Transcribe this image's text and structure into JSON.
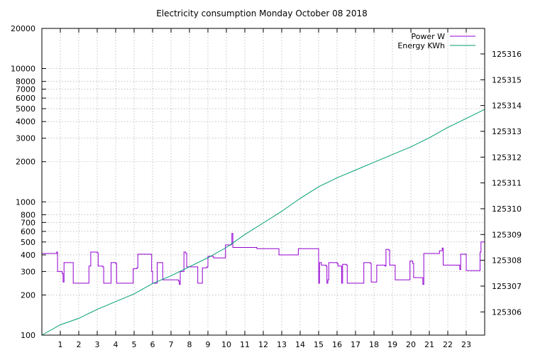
{
  "chart_data": {
    "type": "line",
    "title": "Electricity consumption Monday October 08 2018",
    "xlabel": "",
    "ylabel": "",
    "x_ticks": [
      "1",
      "2",
      "3",
      "4",
      "5",
      "6",
      "7",
      "8",
      "9",
      "10",
      "11",
      "12",
      "13",
      "14",
      "15",
      "16",
      "17",
      "18",
      "19",
      "20",
      "21",
      "22",
      "23"
    ],
    "xlim": [
      0,
      24
    ],
    "y_left": {
      "scale": "log",
      "range": [
        100,
        20000
      ],
      "ticks": [
        {
          "v": 100,
          "label": "100"
        },
        {
          "v": 200,
          "label": "200"
        },
        {
          "v": 300,
          "label": "300"
        },
        {
          "v": 400,
          "label": "400"
        },
        {
          "v": 500,
          "label": "500"
        },
        {
          "v": 600,
          "label": "600"
        },
        {
          "v": 700,
          "label": "700"
        },
        {
          "v": 800,
          "label": "800"
        },
        {
          "v": 1000,
          "label": "1000"
        },
        {
          "v": 2000,
          "label": "2000"
        },
        {
          "v": 3000,
          "label": "3000"
        },
        {
          "v": 4000,
          "label": "4000"
        },
        {
          "v": 5000,
          "label": "5000"
        },
        {
          "v": 6000,
          "label": "6000"
        },
        {
          "v": 7000,
          "label": "7000"
        },
        {
          "v": 8000,
          "label": "8000"
        },
        {
          "v": 10000,
          "label": "10000"
        },
        {
          "v": 20000,
          "label": "20000"
        }
      ]
    },
    "y_right": {
      "scale": "linear",
      "range": [
        125305.1,
        125316.99
      ],
      "ticks": [
        {
          "v": 125306,
          "label": "125306"
        },
        {
          "v": 125307,
          "label": "125307"
        },
        {
          "v": 125308,
          "label": "125308"
        },
        {
          "v": 125309,
          "label": "125309"
        },
        {
          "v": 125310,
          "label": "125310"
        },
        {
          "v": 125311,
          "label": "125311"
        },
        {
          "v": 125312,
          "label": "125312"
        },
        {
          "v": 125313,
          "label": "125313"
        },
        {
          "v": 125314,
          "label": "125314"
        },
        {
          "v": 125315,
          "label": "125315"
        },
        {
          "v": 125316,
          "label": "125316"
        }
      ]
    },
    "grid": true,
    "legend": "top-right",
    "series": [
      {
        "name": "Power W",
        "axis": "left",
        "color": "#9400d3",
        "step": true,
        "points": [
          [
            0,
            410
          ],
          [
            0.8,
            420
          ],
          [
            0.85,
            300
          ],
          [
            1.1,
            290
          ],
          [
            1.15,
            250
          ],
          [
            1.2,
            350
          ],
          [
            1.6,
            350
          ],
          [
            1.7,
            245
          ],
          [
            2.5,
            245
          ],
          [
            2.55,
            330
          ],
          [
            2.65,
            420
          ],
          [
            3.0,
            415
          ],
          [
            3.05,
            330
          ],
          [
            3.3,
            325
          ],
          [
            3.35,
            245
          ],
          [
            3.7,
            245
          ],
          [
            3.75,
            350
          ],
          [
            4.0,
            345
          ],
          [
            4.05,
            245
          ],
          [
            4.9,
            245
          ],
          [
            4.95,
            315
          ],
          [
            5.15,
            320
          ],
          [
            5.2,
            405
          ],
          [
            5.9,
            405
          ],
          [
            5.95,
            300
          ],
          [
            6.0,
            245
          ],
          [
            6.2,
            245
          ],
          [
            6.25,
            350
          ],
          [
            6.5,
            350
          ],
          [
            6.55,
            260
          ],
          [
            7.4,
            255
          ],
          [
            7.45,
            240
          ],
          [
            7.5,
            300
          ],
          [
            7.65,
            300
          ],
          [
            7.7,
            420
          ],
          [
            7.8,
            410
          ],
          [
            7.85,
            325
          ],
          [
            8.4,
            325
          ],
          [
            8.45,
            245
          ],
          [
            8.65,
            245
          ],
          [
            8.7,
            320
          ],
          [
            8.95,
            325
          ],
          [
            9.0,
            390
          ],
          [
            9.25,
            390
          ],
          [
            9.3,
            380
          ],
          [
            9.9,
            380
          ],
          [
            9.95,
            475
          ],
          [
            10.25,
            480
          ],
          [
            10.3,
            580
          ],
          [
            10.35,
            455
          ],
          [
            11.6,
            455
          ],
          [
            11.65,
            445
          ],
          [
            12.8,
            445
          ],
          [
            12.85,
            400
          ],
          [
            13.85,
            400
          ],
          [
            13.9,
            445
          ],
          [
            14.95,
            445
          ],
          [
            15.0,
            245
          ],
          [
            15.05,
            350
          ],
          [
            15.15,
            335
          ],
          [
            15.4,
            330
          ],
          [
            15.45,
            245
          ],
          [
            15.5,
            260
          ],
          [
            15.55,
            350
          ],
          [
            16.0,
            345
          ],
          [
            16.05,
            330
          ],
          [
            16.2,
            330
          ],
          [
            16.25,
            245
          ],
          [
            16.3,
            340
          ],
          [
            16.5,
            335
          ],
          [
            16.55,
            245
          ],
          [
            17.4,
            245
          ],
          [
            17.45,
            350
          ],
          [
            17.8,
            345
          ],
          [
            17.85,
            250
          ],
          [
            18.1,
            250
          ],
          [
            18.15,
            335
          ],
          [
            18.6,
            330
          ],
          [
            18.65,
            440
          ],
          [
            18.8,
            435
          ],
          [
            18.85,
            335
          ],
          [
            19.1,
            335
          ],
          [
            19.15,
            260
          ],
          [
            19.9,
            260
          ],
          [
            19.95,
            360
          ],
          [
            20.1,
            345
          ],
          [
            20.15,
            270
          ],
          [
            20.6,
            270
          ],
          [
            20.65,
            240
          ],
          [
            20.7,
            410
          ],
          [
            21.5,
            410
          ],
          [
            21.55,
            430
          ],
          [
            21.7,
            450
          ],
          [
            21.75,
            335
          ],
          [
            22.6,
            335
          ],
          [
            22.65,
            310
          ],
          [
            22.7,
            405
          ],
          [
            22.95,
            405
          ],
          [
            23.0,
            305
          ],
          [
            23.7,
            305
          ],
          [
            23.75,
            420
          ],
          [
            23.8,
            500
          ],
          [
            24.0,
            500
          ]
        ]
      },
      {
        "name": "Energy KWh",
        "axis": "right",
        "color": "#009e73",
        "step": false,
        "points": [
          [
            0,
            125305.1
          ],
          [
            1,
            125305.5
          ],
          [
            2,
            125305.75
          ],
          [
            3,
            125306.1
          ],
          [
            4,
            125306.4
          ],
          [
            5,
            125306.7
          ],
          [
            6,
            125307.1
          ],
          [
            7,
            125307.4
          ],
          [
            8,
            125307.75
          ],
          [
            9,
            125308.1
          ],
          [
            10,
            125308.5
          ],
          [
            11,
            125309.0
          ],
          [
            12,
            125309.45
          ],
          [
            13,
            125309.9
          ],
          [
            14,
            125310.4
          ],
          [
            15,
            125310.85
          ],
          [
            16,
            125311.2
          ],
          [
            17,
            125311.5
          ],
          [
            18,
            125311.8
          ],
          [
            19,
            125312.1
          ],
          [
            20,
            125312.4
          ],
          [
            21,
            125312.75
          ],
          [
            22,
            125313.15
          ],
          [
            23,
            125313.5
          ],
          [
            24,
            125313.85
          ]
        ]
      }
    ]
  }
}
